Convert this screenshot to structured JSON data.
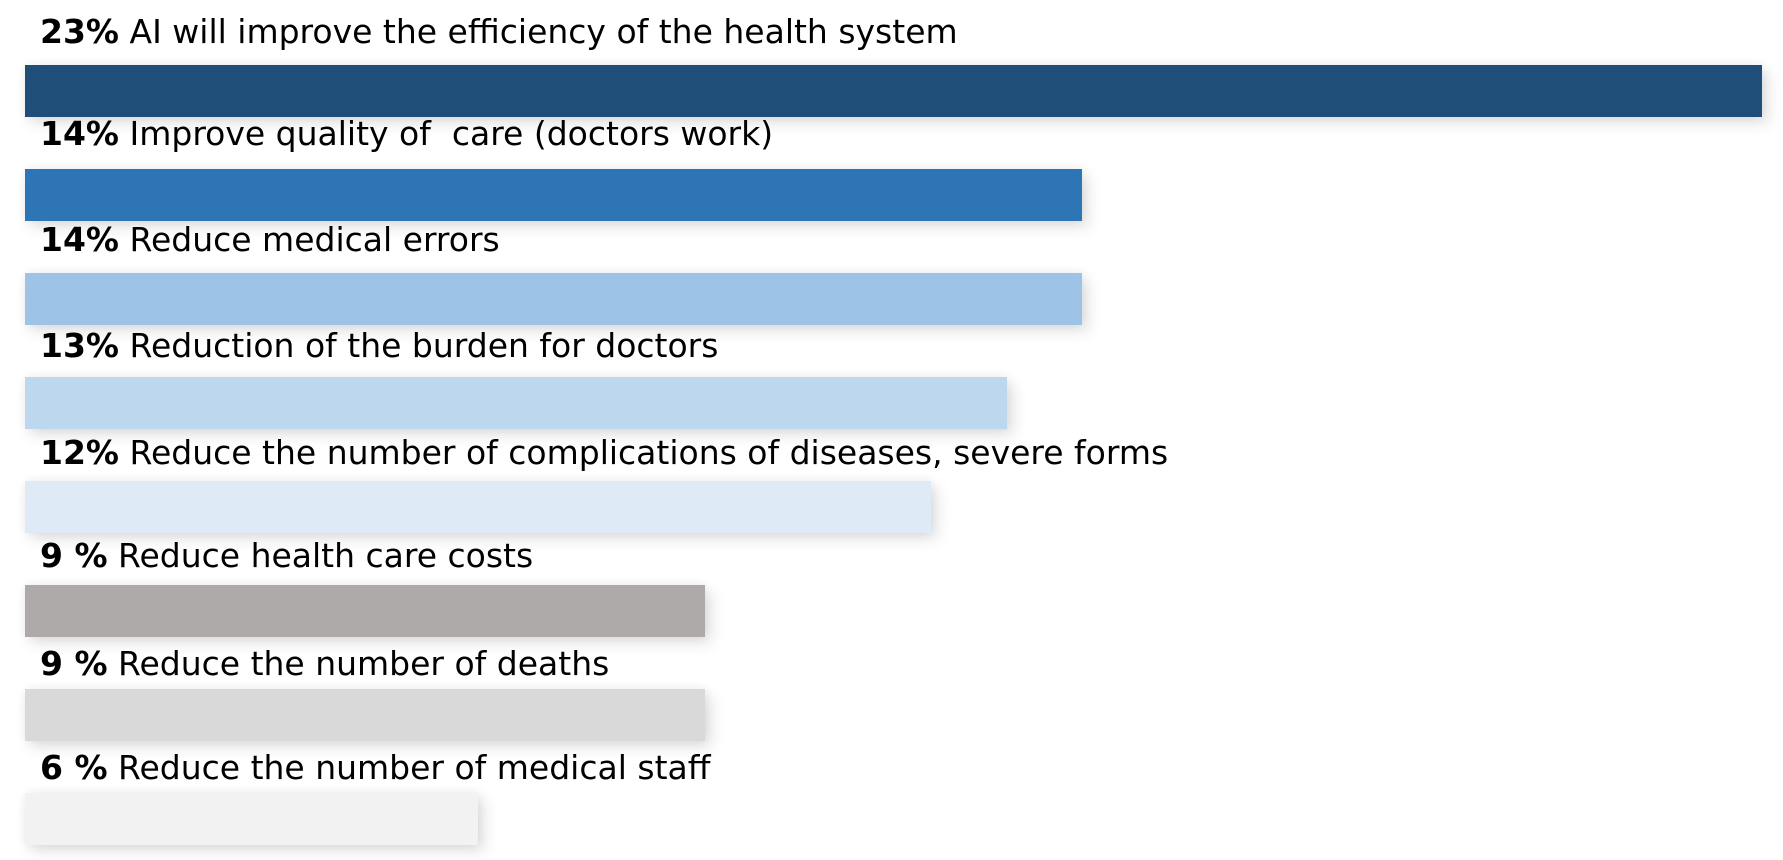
{
  "chart_data": {
    "type": "bar",
    "orientation": "horizontal",
    "xlim": [
      0,
      23
    ],
    "bars": [
      {
        "pct_label": "23%",
        "label": "AI will improve the efficiency of the health system",
        "value": 23,
        "color": "#1f4e79"
      },
      {
        "pct_label": "14%",
        "label": "Improve quality of  care (doctors work)",
        "value": 14,
        "color": "#2e75b6"
      },
      {
        "pct_label": "14%",
        "label": "Reduce medical errors",
        "value": 14,
        "color": "#9dc3e6"
      },
      {
        "pct_label": "13%",
        "label": "Reduction of the burden for doctors",
        "value": 13,
        "color": "#bdd7ee"
      },
      {
        "pct_label": "12%",
        "label": "Reduce the number of complications of diseases, severe forms",
        "value": 12,
        "color": "#deebf7"
      },
      {
        "pct_label": "9 %",
        "label": "Reduce health care costs",
        "value": 9,
        "color": "#aeaaaa"
      },
      {
        "pct_label": "9 %",
        "label": "Reduce the number of deaths",
        "value": 9,
        "color": "#d9d9d9"
      },
      {
        "pct_label": "6 %",
        "label": "Reduce the number of medical staff",
        "value": 6,
        "color": "#f2f2f2"
      }
    ]
  }
}
